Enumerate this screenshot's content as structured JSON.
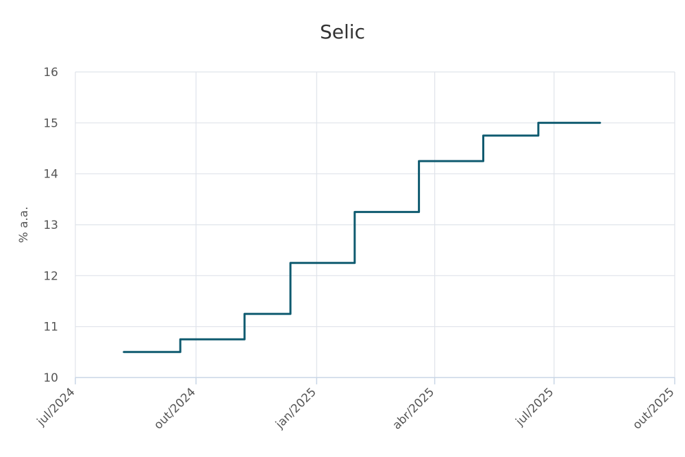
{
  "chart_data": {
    "type": "line",
    "title": "Selic",
    "xlabel": "",
    "ylabel": "% a.a.",
    "ylim": [
      10,
      16
    ],
    "yticks": [
      10,
      11,
      12,
      13,
      14,
      15,
      16
    ],
    "xticks": [
      {
        "date": "2024-07-01",
        "label": "jul/2024"
      },
      {
        "date": "2024-10-01",
        "label": "out/2024"
      },
      {
        "date": "2025-01-01",
        "label": "jan/2025"
      },
      {
        "date": "2025-04-01",
        "label": "abr/2025"
      },
      {
        "date": "2025-07-01",
        "label": "jul/2025"
      },
      {
        "date": "2025-10-01",
        "label": "out/2025"
      }
    ],
    "xlim": [
      "2024-07-01",
      "2025-10-01"
    ],
    "grid": true,
    "step": true,
    "series": [
      {
        "name": "Selic",
        "color": "#0e5a6f",
        "points": [
          {
            "date": "2024-08-07",
            "value": 10.5
          },
          {
            "date": "2024-09-19",
            "value": 10.75
          },
          {
            "date": "2024-11-07",
            "value": 11.25
          },
          {
            "date": "2024-12-12",
            "value": 12.25
          },
          {
            "date": "2025-01-30",
            "value": 13.25
          },
          {
            "date": "2025-03-20",
            "value": 14.25
          },
          {
            "date": "2025-05-08",
            "value": 14.75
          },
          {
            "date": "2025-06-19",
            "value": 15.0
          },
          {
            "date": "2025-08-05",
            "value": 15.0
          }
        ]
      }
    ]
  }
}
